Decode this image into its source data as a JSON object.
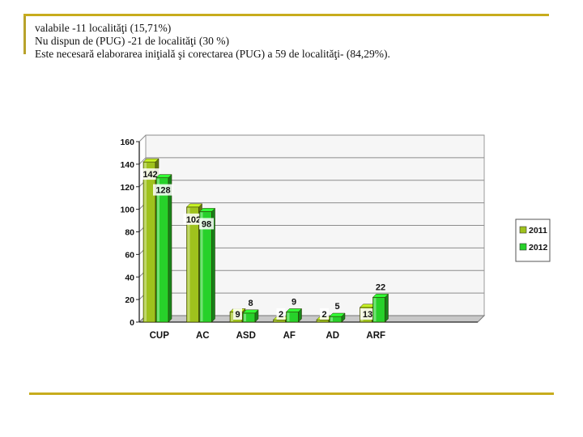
{
  "slide": {
    "lines": [
      "valabile -11 localităţi (15,71%)",
      "Nu dispun de (PUG) -21 de localităţi (30 %)",
      "Este necesară elaborarea iniţială şi corectarea (PUG) a 59 de localităţi- (84,29%)."
    ]
  },
  "chart_data": {
    "type": "bar",
    "categories": [
      "CUP",
      "AC",
      "ASD",
      "AF",
      "AD",
      "ARF"
    ],
    "series": [
      {
        "name": "2011",
        "values": [
          142,
          102,
          9,
          2,
          2,
          13
        ],
        "color": "#9fc21d"
      },
      {
        "name": "2012",
        "values": [
          128,
          98,
          8,
          9,
          5,
          22
        ],
        "color": "#27d12a"
      }
    ],
    "ylim": [
      0,
      160
    ],
    "yticks": [
      "0",
      "20",
      "40",
      "60",
      "80",
      "100",
      "120",
      "140",
      "160"
    ],
    "grid": true,
    "legend": "right",
    "title": "",
    "xlabel": "",
    "ylabel": ""
  }
}
